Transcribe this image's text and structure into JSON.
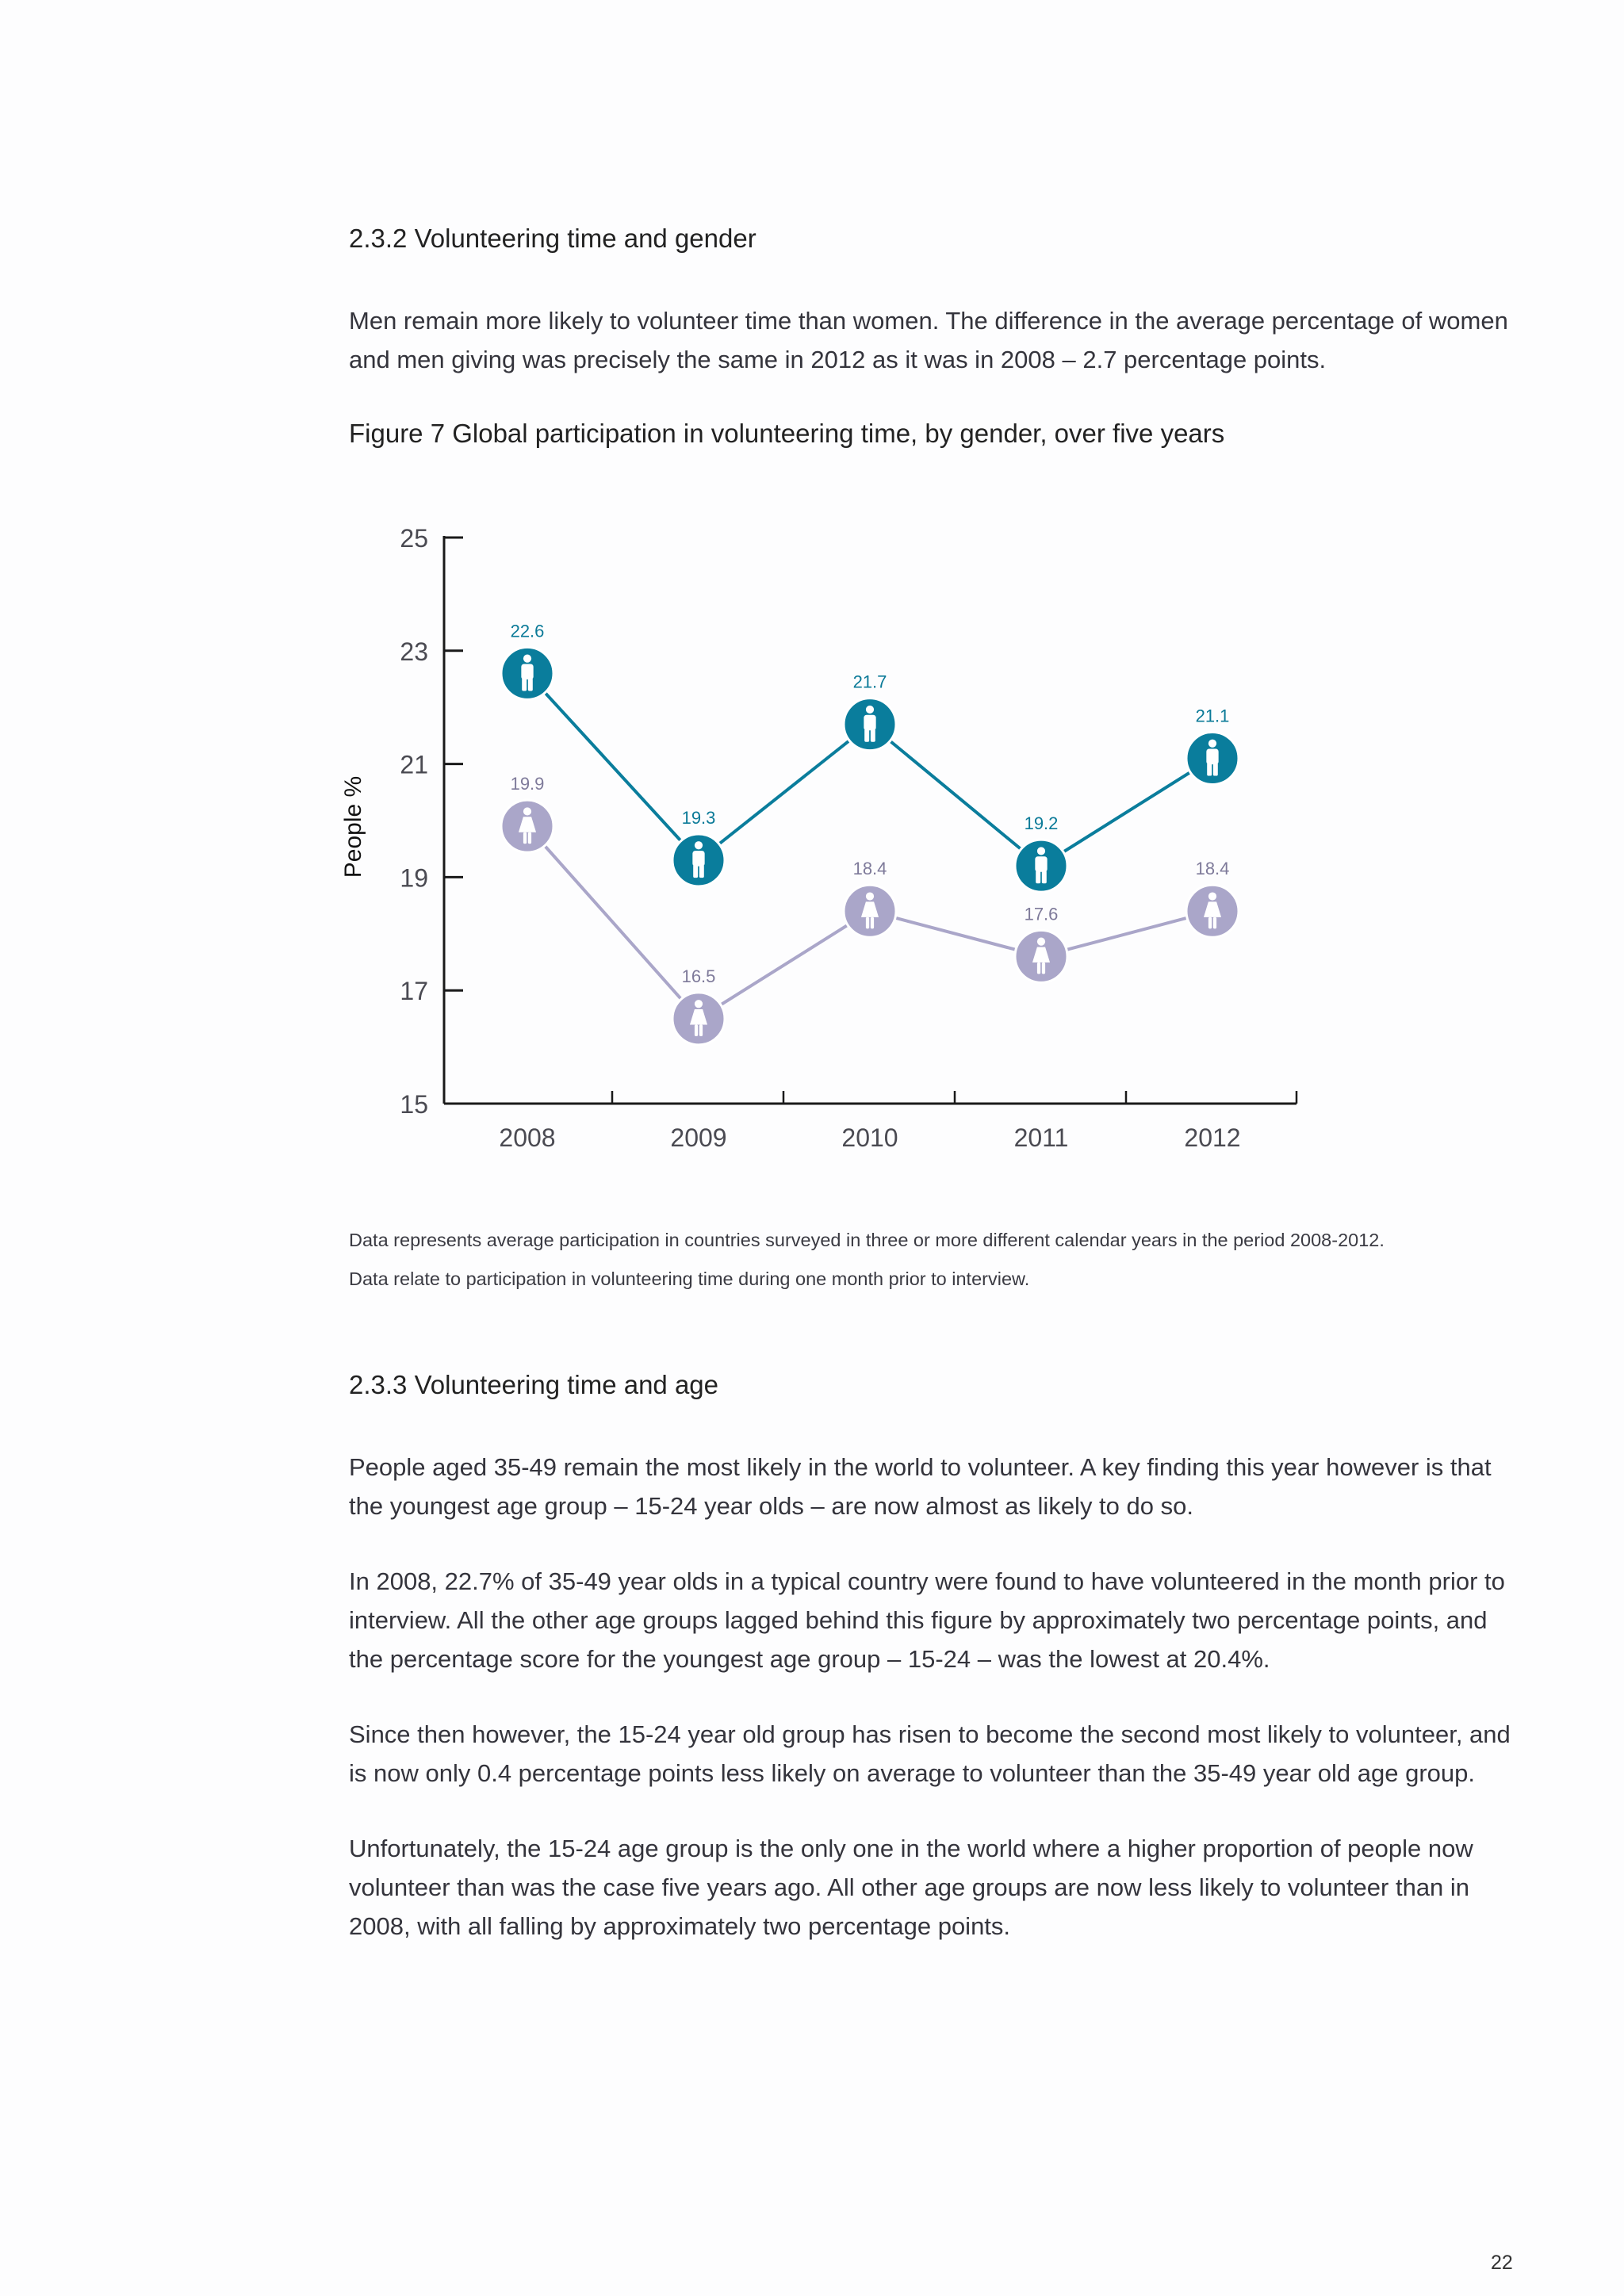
{
  "section_232": {
    "heading": "2.3.2  Volunteering time and gender",
    "paragraph": "Men remain more likely to volunteer time than women. The difference in the average percentage of women and men giving was precisely the same in 2012 as it was in 2008 – 2.7 percentage points."
  },
  "figure": {
    "caption": "Figure 7  Global participation in volunteering time, by gender, over five years",
    "note1": "Data represents average participation in countries surveyed in three or more different calendar years in the period 2008-2012.",
    "note2": "Data relate to participation in volunteering time during one month prior to interview."
  },
  "chart_data": {
    "type": "line",
    "title": "",
    "xlabel": "",
    "ylabel": "People %",
    "categories": [
      "2008",
      "2009",
      "2010",
      "2011",
      "2012"
    ],
    "yticks": [
      "15",
      "17",
      "19",
      "21",
      "23",
      "25"
    ],
    "ylim": [
      15,
      25
    ],
    "grid": false,
    "legend": "none",
    "series": [
      {
        "key": "men",
        "values": [
          22.6,
          19.3,
          21.7,
          19.2,
          21.1
        ],
        "labels": [
          "22.6",
          "19.3",
          "21.7",
          "19.2",
          "21.1"
        ],
        "color": "#0a7d9c",
        "marker_icon": "man-icon"
      },
      {
        "key": "women",
        "values": [
          19.9,
          16.5,
          18.4,
          17.6,
          18.4
        ],
        "labels": [
          "19.9",
          "16.5",
          "18.4",
          "17.6",
          "18.4"
        ],
        "color": "#aaa6c9",
        "marker_icon": "woman-icon"
      }
    ]
  },
  "section_233": {
    "heading": "2.3.3  Volunteering time and age",
    "paragraphs": [
      "People aged 35-49 remain the most likely in the world to volunteer. A key finding this year however is that the youngest age group – 15-24 year olds – are now almost as likely to do so.",
      "In 2008, 22.7% of 35-49 year olds in a typical country were found to have volunteered in the month prior to interview. All the other age groups lagged behind this figure by approximately two percentage points, and the percentage score for the youngest age group – 15-24 – was the lowest at 20.4%.",
      "Since then however, the 15-24 year old group has risen to become the second most likely to volunteer, and is now only 0.4 percentage points less likely on average to volunteer than the 35-49 year old age group.",
      "Unfortunately, the 15-24 age group is the only one in the world where a higher proportion of people now volunteer than was the case five years ago. All other age groups are now less likely to volunteer than in 2008, with all falling by approximately two percentage points."
    ]
  },
  "page_number": "22"
}
